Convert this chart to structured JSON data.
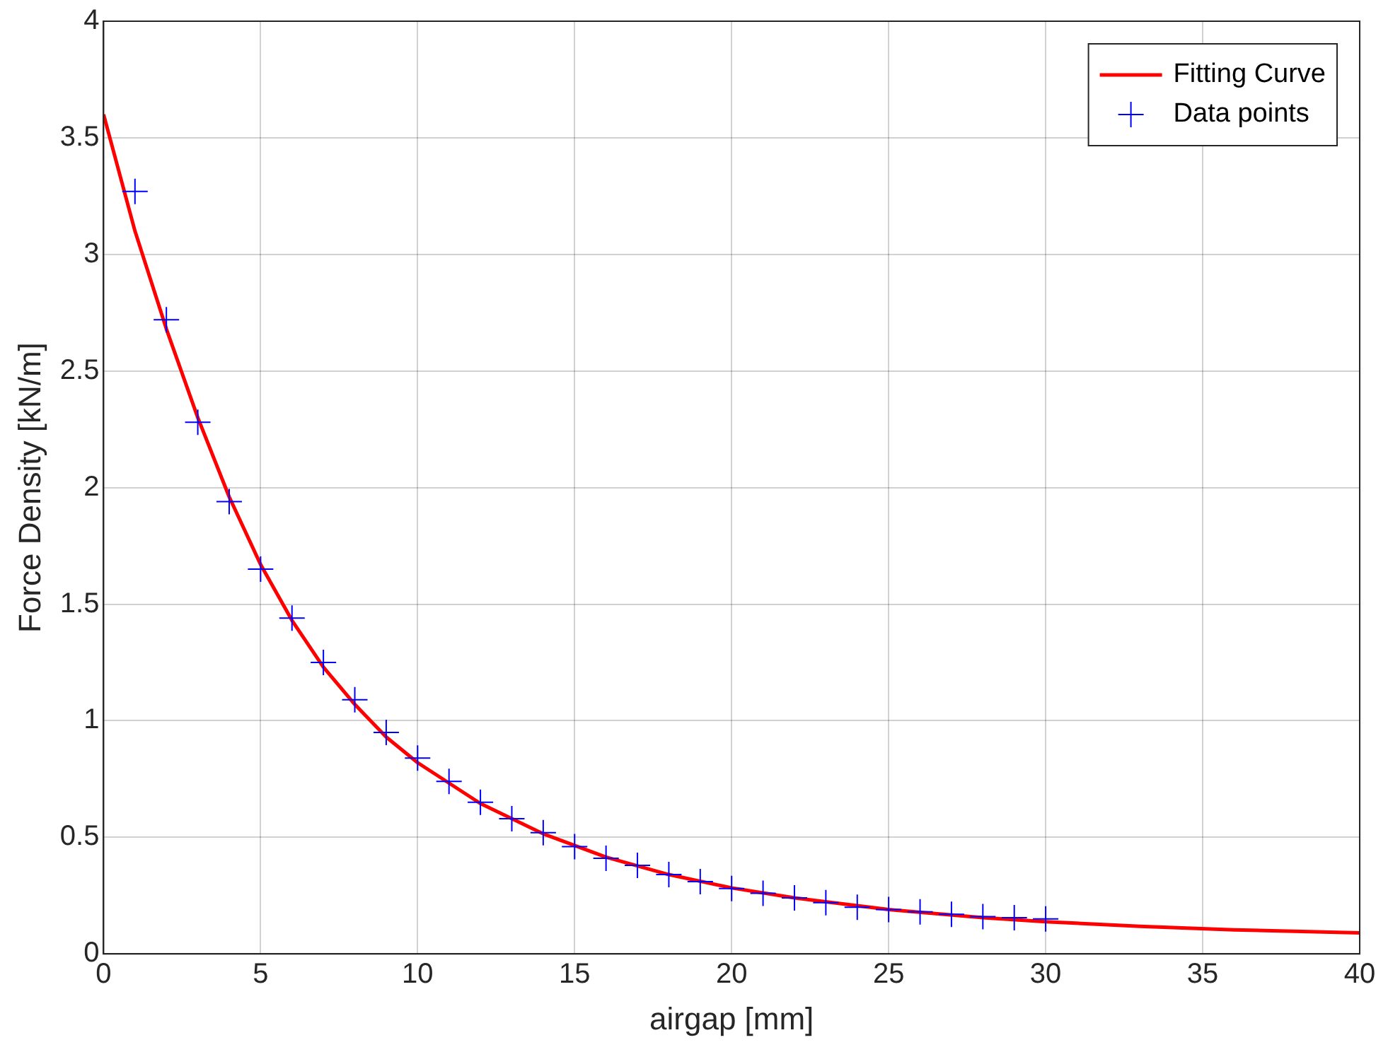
{
  "chart_data": {
    "type": "line",
    "xlabel": "airgap [mm]",
    "ylabel": "Force Density [kN/m]",
    "xlim": [
      0,
      40
    ],
    "xticks": [
      0,
      5,
      10,
      15,
      20,
      25,
      30,
      35,
      40
    ],
    "ylim": [
      0,
      4
    ],
    "yticks": [
      0,
      0.5,
      1,
      1.5,
      2,
      2.5,
      3,
      3.5,
      4
    ],
    "grid": true,
    "legend": "top right",
    "series": [
      {
        "name": "Fitting Curve",
        "type": "line",
        "color": "#ff0000",
        "marker": "none",
        "line_style": "solid",
        "x": [
          0,
          1,
          2,
          3,
          4,
          5,
          6,
          7,
          8,
          9,
          10,
          12,
          14,
          16,
          18,
          20,
          22,
          25,
          28,
          30,
          33,
          36,
          40
        ],
        "values": [
          3.6,
          3.1,
          2.68,
          2.3,
          1.96,
          1.67,
          1.43,
          1.23,
          1.07,
          0.93,
          0.82,
          0.645,
          0.515,
          0.415,
          0.34,
          0.283,
          0.24,
          0.19,
          0.155,
          0.138,
          0.118,
          0.103,
          0.09
        ]
      },
      {
        "name": "Data points",
        "type": "scatter",
        "color": "#0000ff",
        "marker": "cross",
        "x": [
          1,
          2,
          3,
          4,
          5,
          6,
          7,
          8,
          9,
          10,
          11,
          12,
          13,
          14,
          15,
          16,
          17,
          18,
          19,
          20,
          21,
          22,
          23,
          24,
          25,
          26,
          27,
          28,
          29,
          30
        ],
        "values": [
          3.27,
          2.72,
          2.28,
          1.94,
          1.65,
          1.44,
          1.25,
          1.09,
          0.95,
          0.84,
          0.74,
          0.65,
          0.58,
          0.52,
          0.46,
          0.41,
          0.38,
          0.34,
          0.31,
          0.28,
          0.26,
          0.24,
          0.22,
          0.2,
          0.19,
          0.18,
          0.17,
          0.16,
          0.155,
          0.15
        ]
      }
    ]
  }
}
